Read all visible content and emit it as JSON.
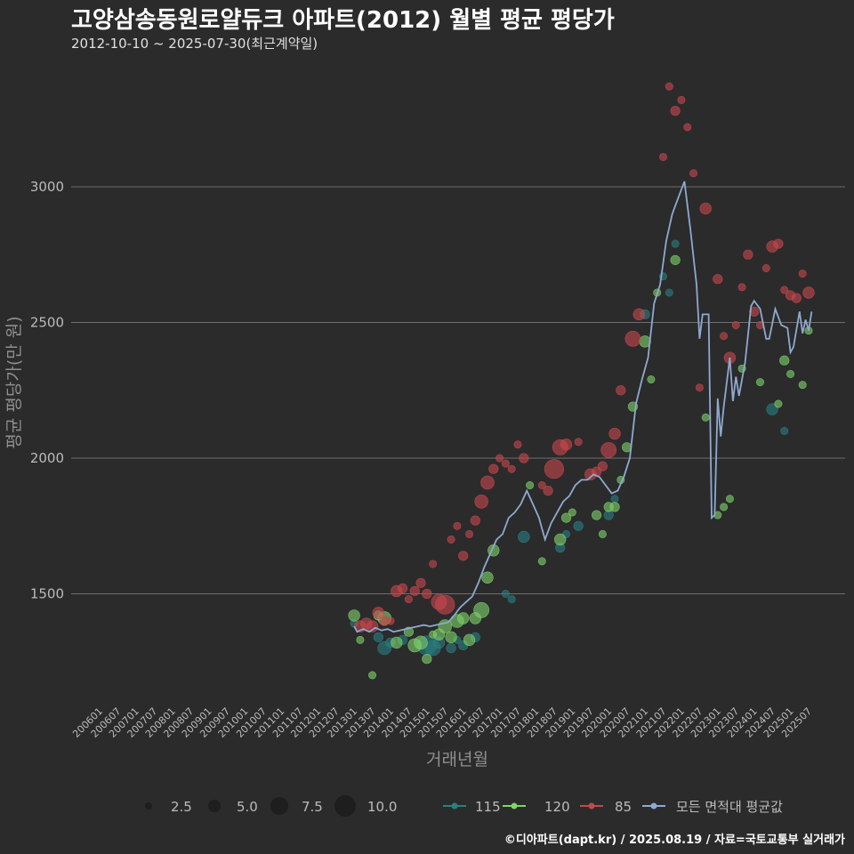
{
  "title": "고양삼송동원로얄듀크 아파트(2012) 월별 평균 평당가",
  "subtitle": "2012-10-10 ~ 2025-07-30(최근계약일)",
  "credit": "©디아파트(dapt.kr) / 2025.08.19 / 자료=국토교통부 실거래가",
  "chart_data": {
    "type": "scatter",
    "xlabel": "거래년월",
    "ylabel": "평균 평당가(만 원)",
    "x_ticks": [
      "200601",
      "200607",
      "200701",
      "200707",
      "200801",
      "200807",
      "200901",
      "200907",
      "201001",
      "201007",
      "201101",
      "201107",
      "201201",
      "201207",
      "201301",
      "201307",
      "201401",
      "201407",
      "201501",
      "201507",
      "201601",
      "201607",
      "201701",
      "201707",
      "201801",
      "201807",
      "201901",
      "201907",
      "202001",
      "202007",
      "202101",
      "202107",
      "202201",
      "202207",
      "202301",
      "202307",
      "202401",
      "202407",
      "202501",
      "202507"
    ],
    "xlim": [
      "2006-01",
      "2025-07"
    ],
    "y_ticks": [
      1500,
      2000,
      2500,
      3000
    ],
    "ylim": [
      1120,
      3420
    ],
    "grid": "horizontal",
    "colors": {
      "115": "#2a7f82",
      "120": "#7fd36b",
      "85": "#c8474c",
      "avg": "#8fa9cf"
    },
    "size_legend": {
      "values": [
        "2.5",
        "5.0",
        "7.5",
        "10.0"
      ]
    },
    "series_legend": [
      "115",
      "120",
      "85",
      "모든 면적대 평균값"
    ],
    "series": [
      {
        "name": "115",
        "points": [
          [
            "2013-01",
            1390,
            2
          ],
          [
            "2013-09",
            1340,
            3
          ],
          [
            "2013-11",
            1300,
            5
          ],
          [
            "2014-01",
            1320,
            3
          ],
          [
            "2014-05",
            1330,
            3
          ],
          [
            "2015-01",
            1310,
            8
          ],
          [
            "2015-03",
            1300,
            6
          ],
          [
            "2015-05",
            1320,
            4
          ],
          [
            "2015-09",
            1300,
            3
          ],
          [
            "2015-11",
            1330,
            2
          ],
          [
            "2016-01",
            1310,
            3
          ],
          [
            "2016-05",
            1340,
            3
          ],
          [
            "2017-03",
            1500,
            2
          ],
          [
            "2017-05",
            1480,
            2
          ],
          [
            "2017-09",
            1710,
            4
          ],
          [
            "2018-09",
            1670,
            3
          ],
          [
            "2018-11",
            1720,
            2
          ],
          [
            "2019-03",
            1750,
            3
          ],
          [
            "2020-01",
            1790,
            3
          ],
          [
            "2020-03",
            1850,
            2
          ],
          [
            "2021-01",
            2530,
            3
          ],
          [
            "2021-07",
            2670,
            2
          ],
          [
            "2021-09",
            2610,
            2
          ],
          [
            "2021-11",
            2790,
            2
          ],
          [
            "2024-07",
            2180,
            4
          ],
          [
            "2024-11",
            2100,
            2
          ]
        ]
      },
      {
        "name": "120",
        "points": [
          [
            "2013-01",
            1420,
            4
          ],
          [
            "2013-03",
            1330,
            2
          ],
          [
            "2013-07",
            1200,
            2
          ],
          [
            "2013-09",
            1420,
            3
          ],
          [
            "2013-11",
            1410,
            5
          ],
          [
            "2014-03",
            1320,
            4
          ],
          [
            "2014-07",
            1360,
            3
          ],
          [
            "2014-09",
            1310,
            5
          ],
          [
            "2014-11",
            1320,
            5
          ],
          [
            "2015-01",
            1260,
            3
          ],
          [
            "2015-03",
            1350,
            2
          ],
          [
            "2015-05",
            1350,
            4
          ],
          [
            "2015-07",
            1380,
            5
          ],
          [
            "2015-09",
            1340,
            4
          ],
          [
            "2015-11",
            1400,
            5
          ],
          [
            "2016-01",
            1410,
            4
          ],
          [
            "2016-03",
            1330,
            4
          ],
          [
            "2016-05",
            1410,
            4
          ],
          [
            "2016-07",
            1440,
            6
          ],
          [
            "2016-09",
            1560,
            4
          ],
          [
            "2016-11",
            1660,
            4
          ],
          [
            "2017-11",
            1900,
            2
          ],
          [
            "2018-03",
            1620,
            2
          ],
          [
            "2018-09",
            1700,
            4
          ],
          [
            "2018-11",
            1780,
            3
          ],
          [
            "2019-01",
            1800,
            2
          ],
          [
            "2019-09",
            1790,
            3
          ],
          [
            "2019-11",
            1720,
            2
          ],
          [
            "2020-01",
            1820,
            3
          ],
          [
            "2020-03",
            1820,
            3
          ],
          [
            "2020-05",
            1920,
            2
          ],
          [
            "2020-07",
            2040,
            3
          ],
          [
            "2020-09",
            2190,
            3
          ],
          [
            "2021-01",
            2430,
            4
          ],
          [
            "2021-03",
            2290,
            2
          ],
          [
            "2021-05",
            2610,
            2
          ],
          [
            "2021-11",
            2730,
            3
          ],
          [
            "2022-09",
            2150,
            2
          ],
          [
            "2023-01",
            1790,
            2
          ],
          [
            "2023-03",
            1820,
            2
          ],
          [
            "2023-05",
            1850,
            2
          ],
          [
            "2023-09",
            2330,
            2
          ],
          [
            "2024-03",
            2280,
            2
          ],
          [
            "2024-09",
            2200,
            2
          ],
          [
            "2024-11",
            2360,
            3
          ],
          [
            "2025-01",
            2310,
            2
          ],
          [
            "2025-05",
            2270,
            2
          ],
          [
            "2025-07",
            2470,
            2
          ]
        ]
      },
      {
        "name": "85",
        "points": [
          [
            "2013-03",
            1380,
            4
          ],
          [
            "2013-05",
            1390,
            4
          ],
          [
            "2013-07",
            1380,
            4
          ],
          [
            "2013-09",
            1430,
            4
          ],
          [
            "2013-11",
            1400,
            3
          ],
          [
            "2014-01",
            1400,
            2
          ],
          [
            "2014-03",
            1510,
            4
          ],
          [
            "2014-05",
            1520,
            3
          ],
          [
            "2014-07",
            1480,
            2
          ],
          [
            "2014-09",
            1510,
            3
          ],
          [
            "2014-11",
            1540,
            3
          ],
          [
            "2015-01",
            1500,
            3
          ],
          [
            "2015-03",
            1610,
            2
          ],
          [
            "2015-05",
            1470,
            6
          ],
          [
            "2015-07",
            1460,
            8
          ],
          [
            "2015-09",
            1700,
            2
          ],
          [
            "2015-11",
            1750,
            2
          ],
          [
            "2016-01",
            1640,
            3
          ],
          [
            "2016-03",
            1720,
            2
          ],
          [
            "2016-05",
            1770,
            3
          ],
          [
            "2016-07",
            1840,
            5
          ],
          [
            "2016-09",
            1910,
            5
          ],
          [
            "2016-11",
            1960,
            3
          ],
          [
            "2017-01",
            2000,
            2
          ],
          [
            "2017-03",
            1980,
            2
          ],
          [
            "2017-05",
            1960,
            2
          ],
          [
            "2017-07",
            2050,
            2
          ],
          [
            "2017-09",
            2000,
            3
          ],
          [
            "2018-03",
            1900,
            2
          ],
          [
            "2018-05",
            1880,
            3
          ],
          [
            "2018-07",
            1960,
            8
          ],
          [
            "2018-09",
            2040,
            6
          ],
          [
            "2018-11",
            2050,
            4
          ],
          [
            "2019-03",
            2060,
            2
          ],
          [
            "2019-07",
            1940,
            4
          ],
          [
            "2019-09",
            1950,
            3
          ],
          [
            "2019-11",
            1970,
            3
          ],
          [
            "2020-01",
            2030,
            6
          ],
          [
            "2020-03",
            2090,
            4
          ],
          [
            "2020-05",
            2250,
            3
          ],
          [
            "2020-09",
            2440,
            6
          ],
          [
            "2020-11",
            2530,
            4
          ],
          [
            "2021-07",
            3110,
            2
          ],
          [
            "2021-09",
            3370,
            2
          ],
          [
            "2021-11",
            3280,
            3
          ],
          [
            "2022-01",
            3320,
            2
          ],
          [
            "2022-03",
            3220,
            2
          ],
          [
            "2022-05",
            3050,
            2
          ],
          [
            "2022-07",
            2260,
            2
          ],
          [
            "2022-09",
            2920,
            4
          ],
          [
            "2023-01",
            2660,
            3
          ],
          [
            "2023-03",
            2450,
            2
          ],
          [
            "2023-05",
            2370,
            4
          ],
          [
            "2023-07",
            2490,
            2
          ],
          [
            "2023-09",
            2630,
            2
          ],
          [
            "2023-11",
            2750,
            3
          ],
          [
            "2024-01",
            2540,
            3
          ],
          [
            "2024-03",
            2490,
            2
          ],
          [
            "2024-05",
            2700,
            2
          ],
          [
            "2024-07",
            2780,
            4
          ],
          [
            "2024-09",
            2790,
            3
          ],
          [
            "2024-11",
            2620,
            2
          ],
          [
            "2025-01",
            2600,
            3
          ],
          [
            "2025-03",
            2590,
            3
          ],
          [
            "2025-05",
            2680,
            2
          ],
          [
            "2025-07",
            2610,
            4
          ]
        ]
      }
    ],
    "average": [
      [
        "2013-01",
        1380
      ],
      [
        "2013-02",
        1360
      ],
      [
        "2013-04",
        1370
      ],
      [
        "2013-06",
        1360
      ],
      [
        "2013-08",
        1375
      ],
      [
        "2013-10",
        1365
      ],
      [
        "2013-12",
        1370
      ],
      [
        "2014-02",
        1360
      ],
      [
        "2014-04",
        1365
      ],
      [
        "2014-06",
        1370
      ],
      [
        "2014-08",
        1375
      ],
      [
        "2014-10",
        1380
      ],
      [
        "2014-12",
        1385
      ],
      [
        "2015-02",
        1380
      ],
      [
        "2015-04",
        1385
      ],
      [
        "2015-06",
        1390
      ],
      [
        "2015-08",
        1395
      ],
      [
        "2015-10",
        1420
      ],
      [
        "2015-12",
        1450
      ],
      [
        "2016-02",
        1470
      ],
      [
        "2016-04",
        1490
      ],
      [
        "2016-06",
        1540
      ],
      [
        "2016-08",
        1600
      ],
      [
        "2016-10",
        1650
      ],
      [
        "2016-12",
        1700
      ],
      [
        "2017-02",
        1720
      ],
      [
        "2017-04",
        1780
      ],
      [
        "2017-06",
        1800
      ],
      [
        "2017-08",
        1830
      ],
      [
        "2017-10",
        1880
      ],
      [
        "2017-12",
        1830
      ],
      [
        "2018-02",
        1780
      ],
      [
        "2018-04",
        1700
      ],
      [
        "2018-06",
        1760
      ],
      [
        "2018-08",
        1800
      ],
      [
        "2018-10",
        1840
      ],
      [
        "2018-12",
        1860
      ],
      [
        "2019-02",
        1900
      ],
      [
        "2019-04",
        1920
      ],
      [
        "2019-06",
        1920
      ],
      [
        "2019-08",
        1940
      ],
      [
        "2019-10",
        1930
      ],
      [
        "2019-12",
        1900
      ],
      [
        "2020-02",
        1870
      ],
      [
        "2020-04",
        1880
      ],
      [
        "2020-06",
        1930
      ],
      [
        "2020-08",
        2000
      ],
      [
        "2020-10",
        2200
      ],
      [
        "2020-12",
        2290
      ],
      [
        "2021-02",
        2370
      ],
      [
        "2021-04",
        2570
      ],
      [
        "2021-06",
        2640
      ],
      [
        "2021-08",
        2800
      ],
      [
        "2021-10",
        2900
      ],
      [
        "2021-12",
        2960
      ],
      [
        "2022-02",
        3020
      ],
      [
        "2022-04",
        2840
      ],
      [
        "2022-06",
        2640
      ],
      [
        "2022-07",
        2440
      ],
      [
        "2022-08",
        2530
      ],
      [
        "2022-10",
        2530
      ],
      [
        "2022-11",
        1780
      ],
      [
        "2022-12",
        1790
      ],
      [
        "2023-01",
        2220
      ],
      [
        "2023-02",
        2080
      ],
      [
        "2023-03",
        2190
      ],
      [
        "2023-05",
        2370
      ],
      [
        "2023-06",
        2210
      ],
      [
        "2023-07",
        2300
      ],
      [
        "2023-08",
        2230
      ],
      [
        "2023-10",
        2350
      ],
      [
        "2023-12",
        2560
      ],
      [
        "2024-01",
        2580
      ],
      [
        "2024-03",
        2550
      ],
      [
        "2024-05",
        2440
      ],
      [
        "2024-06",
        2440
      ],
      [
        "2024-08",
        2550
      ],
      [
        "2024-10",
        2490
      ],
      [
        "2024-12",
        2480
      ],
      [
        "2025-01",
        2390
      ],
      [
        "2025-02",
        2410
      ],
      [
        "2025-04",
        2540
      ],
      [
        "2025-05",
        2460
      ],
      [
        "2025-06",
        2510
      ],
      [
        "2025-07",
        2470
      ],
      [
        "2025-08",
        2540
      ]
    ]
  }
}
